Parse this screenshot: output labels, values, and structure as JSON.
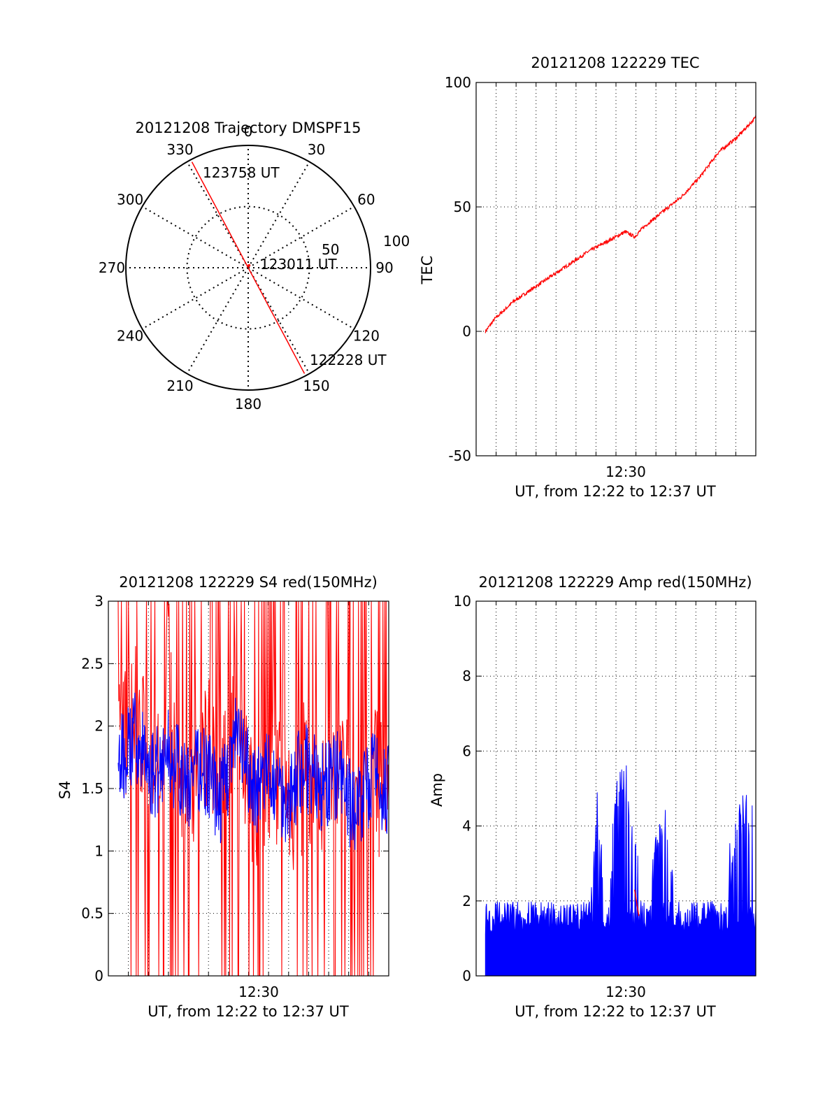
{
  "colors": {
    "red": "#ff0000",
    "blue": "#0000ff",
    "axis": "#000000",
    "grid": "#000000"
  },
  "chart_data": [
    {
      "type": "polar",
      "title": "20121208 Trajectory DMSPF15",
      "angle_ticks": [
        "0",
        "30",
        "60",
        "90",
        "120",
        "150",
        "180",
        "210",
        "240",
        "270",
        "300",
        "330"
      ],
      "radial_ticks": [
        "50",
        "100"
      ],
      "rlim": [
        0,
        100
      ],
      "grid": true,
      "annotations": [
        "123758 UT",
        "123011 UT",
        "122228 UT"
      ],
      "trajectory": {
        "color": "red",
        "points": [
          {
            "label": "123758 UT",
            "az": 332,
            "r": 98
          },
          {
            "label": "123011 UT",
            "az": 20,
            "r": 2
          },
          {
            "label": "122228 UT",
            "az": 152,
            "r": 98
          }
        ]
      }
    },
    {
      "type": "line",
      "title": "20121208 122229 TEC",
      "xlabel": "UT, from 12:22 to 12:37 UT",
      "ylabel": "TEC",
      "xticks": [
        "12:30"
      ],
      "yticks": [
        "-50",
        "0",
        "50",
        "100"
      ],
      "ylim": [
        -50,
        100
      ],
      "grid": true,
      "series": [
        {
          "color": "red",
          "x": [
            "12:22:30",
            "12:23:00",
            "12:24:00",
            "12:25:00",
            "12:26:00",
            "12:27:00",
            "12:28:00",
            "12:29:00",
            "12:30:00",
            "12:30:30",
            "12:31:00",
            "12:32:00",
            "12:33:00",
            "12:34:00",
            "12:35:00",
            "12:36:00",
            "12:37:00"
          ],
          "values": [
            0,
            5,
            12,
            17,
            22,
            27,
            32,
            36,
            40,
            38,
            42,
            48,
            54,
            62,
            72,
            78,
            86
          ]
        }
      ]
    },
    {
      "type": "line",
      "title": "20121208 122229 S4 red(150MHz)",
      "xlabel": "UT, from 12:22 to 12:37 UT",
      "ylabel": "S4",
      "xticks": [
        "12:30"
      ],
      "yticks": [
        "0",
        "0.5",
        "1",
        "1.5",
        "2",
        "2.5",
        "3"
      ],
      "ylim": [
        0,
        3
      ],
      "grid": true,
      "series": [
        {
          "color": "red",
          "values": [
            1.8,
            2.1,
            1.5,
            2.4,
            1.2,
            1.9,
            1.6,
            2.2,
            1.4,
            1.7,
            1.3,
            1.6,
            1.5,
            1.8,
            1.2,
            1.6,
            1.4
          ]
        },
        {
          "color": "blue",
          "values": [
            1.7,
            1.9,
            1.6,
            1.8,
            1.5,
            1.7,
            1.4,
            1.9,
            1.5,
            1.6,
            1.4,
            1.7,
            1.5,
            1.6,
            1.3,
            1.6,
            1.5
          ]
        }
      ]
    },
    {
      "type": "line",
      "title": "20121208 122229 Amp red(150MHz)",
      "xlabel": "UT, from 12:22 to 12:37 UT",
      "ylabel": "Amp",
      "xticks": [
        "12:30"
      ],
      "yticks": [
        "0",
        "2",
        "4",
        "6",
        "8",
        "10"
      ],
      "ylim": [
        0,
        10
      ],
      "grid": true,
      "series": [
        {
          "color": "blue",
          "x": [
            "12:22:30",
            "12:23:00",
            "12:24:00",
            "12:25:00",
            "12:26:00",
            "12:27:00",
            "12:28:00",
            "12:28:30",
            "12:29:00",
            "12:29:30",
            "12:30:00",
            "12:31:00",
            "12:32:00",
            "12:33:00",
            "12:34:00",
            "12:35:00",
            "12:36:00",
            "12:36:30",
            "12:37:00"
          ],
          "values": [
            1.8,
            2.2,
            2.0,
            1.9,
            1.8,
            2.0,
            1.9,
            5.0,
            1.9,
            5.2,
            5.9,
            1.9,
            4.9,
            1.8,
            1.9,
            2.0,
            4.6,
            5.0,
            4.4
          ]
        }
      ]
    }
  ]
}
